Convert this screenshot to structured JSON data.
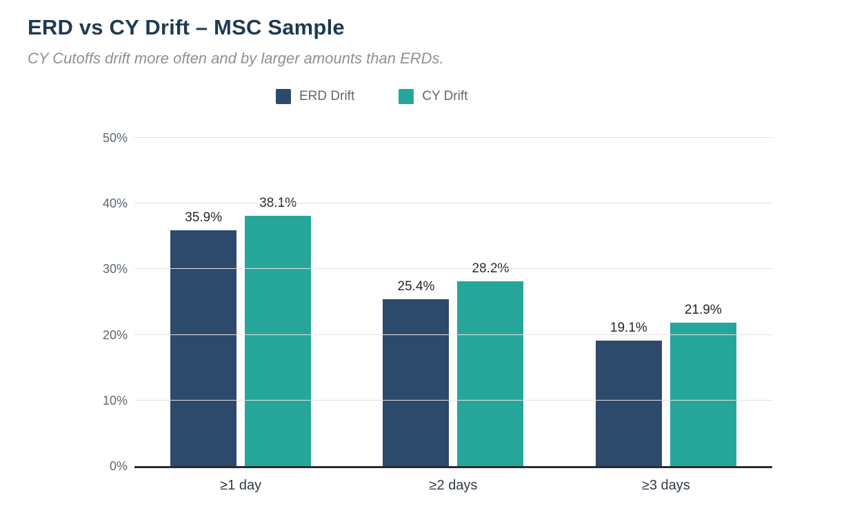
{
  "title": "ERD vs CY Drift – MSC Sample",
  "subtitle": "CY Cutoffs drift more often and by larger amounts than ERDs.",
  "colors": {
    "erd_bar": "#2d4a6d",
    "cy_bar": "#26a69a",
    "title_text": "#1e3a52",
    "subtitle_text": "#8b9096",
    "axis_tick_text": "#5c6873",
    "gridline": "#e2e2e2",
    "axis_line": "#2b2b2b"
  },
  "chart_data": {
    "type": "bar",
    "title": "ERD vs CY Drift – MSC Sample",
    "subtitle": "CY Cutoffs drift more often and by larger amounts than ERDs.",
    "categories": [
      "≥1 day",
      "≥2 days",
      "≥3 days"
    ],
    "series": [
      {
        "name": "ERD Drift",
        "color": "#2d4a6d",
        "values": [
          35.9,
          25.4,
          19.1
        ]
      },
      {
        "name": "CY Drift",
        "color": "#26a69a",
        "values": [
          38.1,
          28.2,
          21.9
        ]
      }
    ],
    "data_labels": {
      "ERD Drift": [
        "35.9%",
        "25.4%",
        "19.1%"
      ],
      "CY Drift": [
        "38.1%",
        "28.2%",
        "21.9%"
      ]
    },
    "value_suffix": "%",
    "xlabel": "",
    "ylabel": "",
    "ylim": [
      0,
      50
    ],
    "yticks": [
      0,
      10,
      20,
      30,
      40,
      50
    ],
    "ytick_labels": [
      "0%",
      "10%",
      "20%",
      "30%",
      "40%",
      "50%"
    ],
    "grid": true,
    "legend_position": "top-center"
  }
}
